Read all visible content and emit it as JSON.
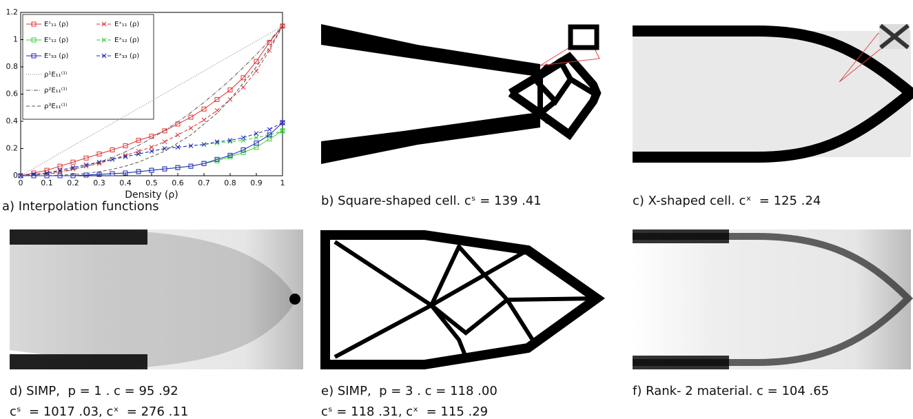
{
  "chart_data": {
    "type": "line",
    "caption": "a) Interpolation functions",
    "x_label": "Density (ρ)",
    "x": [
      0,
      0.05,
      0.1,
      0.15,
      0.2,
      0.25,
      0.3,
      0.35,
      0.4,
      0.45,
      0.5,
      0.55,
      0.6,
      0.65,
      0.7,
      0.75,
      0.8,
      0.85,
      0.9,
      0.95,
      1
    ],
    "xlim": [
      0,
      1
    ],
    "xticks": [
      0,
      0.1,
      0.2,
      0.3,
      0.4,
      0.5,
      0.6,
      0.7,
      0.8,
      0.9,
      1
    ],
    "ylim": [
      0,
      1.2
    ],
    "yticks": [
      0,
      0.2,
      0.4,
      0.6,
      0.8,
      1,
      1.2
    ],
    "series": [
      {
        "name": "Eˢ₁₁ (ρ)",
        "color": "#e03030",
        "marker": "square",
        "line_style": "solid",
        "values": [
          0,
          0.02,
          0.04,
          0.07,
          0.1,
          0.13,
          0.16,
          0.19,
          0.22,
          0.26,
          0.29,
          0.33,
          0.38,
          0.43,
          0.49,
          0.56,
          0.63,
          0.72,
          0.84,
          0.98,
          1.1
        ]
      },
      {
        "name": "Eˣ₁₁ (ρ)",
        "color": "#e03030",
        "marker": "x",
        "line_style": "dashed",
        "values": [
          0,
          0.01,
          0.02,
          0.03,
          0.05,
          0.07,
          0.09,
          0.12,
          0.15,
          0.18,
          0.21,
          0.25,
          0.3,
          0.35,
          0.41,
          0.48,
          0.56,
          0.65,
          0.77,
          0.92,
          1.1
        ]
      },
      {
        "name": "Eˢ₁₂ (ρ)",
        "color": "#30d030",
        "marker": "square",
        "line_style": "solid",
        "values": [
          0,
          0,
          0,
          0,
          0,
          0.005,
          0.01,
          0.015,
          0.02,
          0.03,
          0.04,
          0.05,
          0.06,
          0.07,
          0.09,
          0.11,
          0.14,
          0.17,
          0.21,
          0.27,
          0.33
        ]
      },
      {
        "name": "Eˣ₁₂ (ρ)",
        "color": "#30d030",
        "marker": "x",
        "line_style": "dashed",
        "values": [
          0,
          0.01,
          0.02,
          0.04,
          0.06,
          0.08,
          0.1,
          0.12,
          0.14,
          0.16,
          0.18,
          0.2,
          0.21,
          0.22,
          0.23,
          0.24,
          0.25,
          0.26,
          0.28,
          0.3,
          0.33
        ]
      },
      {
        "name": "Eˢ₃₃ (ρ)",
        "color": "#2020c0",
        "marker": "square",
        "line_style": "solid",
        "values": [
          0,
          0,
          0,
          0,
          0,
          0.005,
          0.01,
          0.015,
          0.02,
          0.03,
          0.04,
          0.05,
          0.06,
          0.07,
          0.09,
          0.12,
          0.15,
          0.19,
          0.24,
          0.3,
          0.39
        ]
      },
      {
        "name": "Eˣ₃₃ (ρ)",
        "color": "#2020c0",
        "marker": "x",
        "line_style": "dashed",
        "values": [
          0,
          0.01,
          0.02,
          0.04,
          0.06,
          0.08,
          0.1,
          0.12,
          0.14,
          0.16,
          0.18,
          0.2,
          0.21,
          0.22,
          0.23,
          0.25,
          0.26,
          0.28,
          0.31,
          0.34,
          0.39
        ]
      },
      {
        "name": "ρ¹E₁₁⁽¹⁾",
        "color": "#777777",
        "marker": "none",
        "line_style": "dotted",
        "values": [
          0,
          0.055,
          0.11,
          0.165,
          0.22,
          0.275,
          0.33,
          0.385,
          0.44,
          0.495,
          0.55,
          0.605,
          0.66,
          0.715,
          0.77,
          0.825,
          0.88,
          0.935,
          0.99,
          1.045,
          1.1
        ]
      },
      {
        "name": "ρ²E₁₁⁽¹⁾",
        "color": "#555555",
        "marker": "none",
        "line_style": "dashdot",
        "values": [
          0,
          0.003,
          0.011,
          0.025,
          0.044,
          0.069,
          0.099,
          0.135,
          0.176,
          0.223,
          0.275,
          0.333,
          0.396,
          0.465,
          0.539,
          0.619,
          0.704,
          0.795,
          0.891,
          0.993,
          1.1
        ]
      },
      {
        "name": "ρ³E₁₁⁽¹⁾",
        "color": "#555555",
        "marker": "none",
        "line_style": "dashed",
        "values": [
          0,
          0,
          0.001,
          0.004,
          0.009,
          0.017,
          0.03,
          0.047,
          0.07,
          0.1,
          0.14,
          0.18,
          0.24,
          0.3,
          0.38,
          0.46,
          0.56,
          0.68,
          0.8,
          0.94,
          1.1
        ]
      }
    ]
  },
  "panels": [
    {
      "caption": [
        "b) Square-shaped cell. cˢ = 139 .41"
      ]
    },
    {
      "caption": [
        "c) X-shaped cell. cˣ  = 125 .24"
      ]
    },
    {
      "caption": [
        "d) SIMP,  p = 1 . c = 95 .92",
        "cˢ  = 1017 .03, cˣ  = 276 .11"
      ]
    },
    {
      "caption": [
        "e) SIMP,  p = 3 . c = 118 .00",
        "cˢ = 118 .31, cˣ  = 115 .29"
      ]
    },
    {
      "caption": [
        "f) Rank- 2 material. c = 104 .65"
      ]
    }
  ]
}
